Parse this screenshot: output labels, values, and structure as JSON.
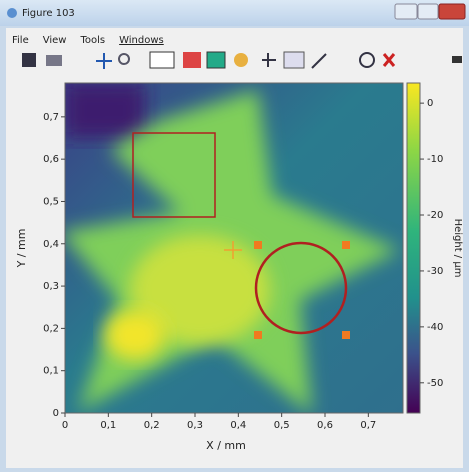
{
  "window": {
    "title": "Figure 103",
    "menu": [
      "File",
      "View",
      "Tools",
      "Windows"
    ]
  },
  "chart_data": {
    "type": "heatmap",
    "xlabel": "X / mm",
    "ylabel": "Y / mm",
    "colorbar_label": "Height / µm",
    "xlim": [
      0,
      0.78
    ],
    "ylim": [
      0,
      0.78
    ],
    "xticks": [
      0,
      {
        "value": 0.1,
        "label": "0,1"
      },
      {
        "value": 0.2,
        "label": "0,2"
      },
      {
        "value": 0.3,
        "label": "0,3"
      },
      {
        "value": 0.4,
        "label": "0,4"
      },
      {
        "value": 0.5,
        "label": "0,5"
      },
      {
        "value": 0.6,
        "label": "0,6"
      },
      {
        "value": 0.7,
        "label": "0,7"
      }
    ],
    "yticks": [
      0,
      {
        "value": 0.1,
        "label": "0,1"
      },
      {
        "value": 0.2,
        "label": "0,2"
      },
      {
        "value": 0.3,
        "label": "0,3"
      },
      {
        "value": 0.4,
        "label": "0,4"
      },
      {
        "value": 0.5,
        "label": "0,5"
      },
      {
        "value": 0.6,
        "label": "0,6"
      },
      {
        "value": 0.7,
        "label": "0,7"
      }
    ],
    "clim": [
      -55.4,
      3.6
    ],
    "cticks": [
      0,
      -10,
      -20,
      -30,
      -40,
      -50
    ]
  }
}
